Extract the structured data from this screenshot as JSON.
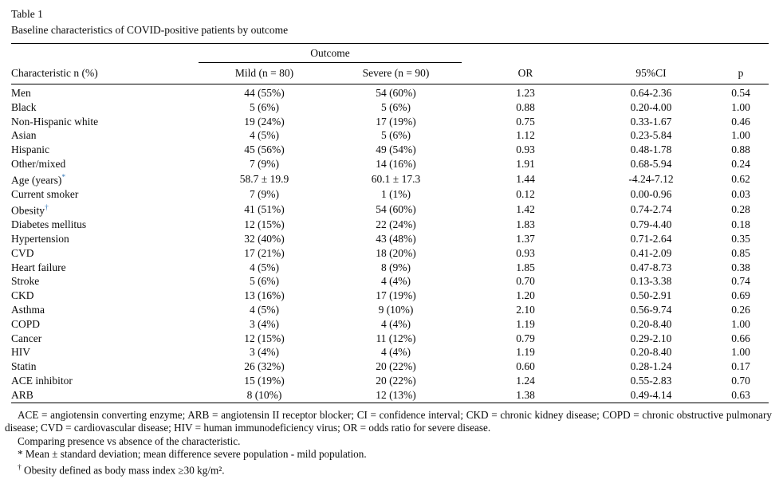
{
  "colors": {
    "footnote_marker_blue": "#3579b8",
    "text": "#0b0b0b",
    "background": "#ffffff"
  },
  "table": {
    "label": "Table 1",
    "caption": "Baseline characteristics of COVID-positive patients by outcome",
    "spanner": "Outcome",
    "columns": [
      "Characteristic n (%)",
      "Mild (n = 80)",
      "Severe (n = 90)",
      "OR",
      "95%CI",
      "p"
    ],
    "rows": [
      {
        "characteristic": "Men",
        "marker": "",
        "mild": "44 (55%)",
        "severe": "54 (60%)",
        "or": "1.23",
        "ci": "0.64-2.36",
        "p": "0.54"
      },
      {
        "characteristic": "Black",
        "marker": "",
        "mild": "5 (6%)",
        "severe": "5 (6%)",
        "or": "0.88",
        "ci": "0.20-4.00",
        "p": "1.00"
      },
      {
        "characteristic": "Non-Hispanic white",
        "marker": "",
        "mild": "19 (24%)",
        "severe": "17 (19%)",
        "or": "0.75",
        "ci": "0.33-1.67",
        "p": "0.46"
      },
      {
        "characteristic": "Asian",
        "marker": "",
        "mild": "4 (5%)",
        "severe": "5 (6%)",
        "or": "1.12",
        "ci": "0.23-5.84",
        "p": "1.00"
      },
      {
        "characteristic": "Hispanic",
        "marker": "",
        "mild": "45 (56%)",
        "severe": "49 (54%)",
        "or": "0.93",
        "ci": "0.48-1.78",
        "p": "0.88"
      },
      {
        "characteristic": "Other/mixed",
        "marker": "",
        "mild": "7 (9%)",
        "severe": "14 (16%)",
        "or": "1.91",
        "ci": "0.68-5.94",
        "p": "0.24"
      },
      {
        "characteristic": "Age (years)",
        "marker": "*",
        "mild": "58.7 ± 19.9",
        "severe": "60.1 ± 17.3",
        "or": "1.44",
        "ci": "-4.24-7.12",
        "p": "0.62"
      },
      {
        "characteristic": "Current smoker",
        "marker": "",
        "mild": "7 (9%)",
        "severe": "1 (1%)",
        "or": "0.12",
        "ci": "0.00-0.96",
        "p": "0.03"
      },
      {
        "characteristic": "Obesity",
        "marker": "†",
        "mild": "41 (51%)",
        "severe": "54 (60%)",
        "or": "1.42",
        "ci": "0.74-2.74",
        "p": "0.28"
      },
      {
        "characteristic": "Diabetes mellitus",
        "marker": "",
        "mild": "12 (15%)",
        "severe": "22 (24%)",
        "or": "1.83",
        "ci": "0.79-4.40",
        "p": "0.18"
      },
      {
        "characteristic": "Hypertension",
        "marker": "",
        "mild": "32 (40%)",
        "severe": "43 (48%)",
        "or": "1.37",
        "ci": "0.71-2.64",
        "p": "0.35"
      },
      {
        "characteristic": "CVD",
        "marker": "",
        "mild": "17 (21%)",
        "severe": "18 (20%)",
        "or": "0.93",
        "ci": "0.41-2.09",
        "p": "0.85"
      },
      {
        "characteristic": "Heart failure",
        "marker": "",
        "mild": "4 (5%)",
        "severe": "8 (9%)",
        "or": "1.85",
        "ci": "0.47-8.73",
        "p": "0.38"
      },
      {
        "characteristic": "Stroke",
        "marker": "",
        "mild": "5 (6%)",
        "severe": "4 (4%)",
        "or": "0.70",
        "ci": "0.13-3.38",
        "p": "0.74"
      },
      {
        "characteristic": "CKD",
        "marker": "",
        "mild": "13 (16%)",
        "severe": "17 (19%)",
        "or": "1.20",
        "ci": "0.50-2.91",
        "p": "0.69"
      },
      {
        "characteristic": "Asthma",
        "marker": "",
        "mild": "4 (5%)",
        "severe": "9 (10%)",
        "or": "2.10",
        "ci": "0.56-9.74",
        "p": "0.26"
      },
      {
        "characteristic": "COPD",
        "marker": "",
        "mild": "3 (4%)",
        "severe": "4 (4%)",
        "or": "1.19",
        "ci": "0.20-8.40",
        "p": "1.00"
      },
      {
        "characteristic": "Cancer",
        "marker": "",
        "mild": "12 (15%)",
        "severe": "11 (12%)",
        "or": "0.79",
        "ci": "0.29-2.10",
        "p": "0.66"
      },
      {
        "characteristic": "HIV",
        "marker": "",
        "mild": "3 (4%)",
        "severe": "4 (4%)",
        "or": "1.19",
        "ci": "0.20-8.40",
        "p": "1.00"
      },
      {
        "characteristic": "Statin",
        "marker": "",
        "mild": "26 (32%)",
        "severe": "20 (22%)",
        "or": "0.60",
        "ci": "0.28-1.24",
        "p": "0.17"
      },
      {
        "characteristic": "ACE inhibitor",
        "marker": "",
        "mild": "15 (19%)",
        "severe": "20 (22%)",
        "or": "1.24",
        "ci": "0.55-2.83",
        "p": "0.70"
      },
      {
        "characteristic": "ARB",
        "marker": "",
        "mild": "8 (10%)",
        "severe": "12 (13%)",
        "or": "1.38",
        "ci": "0.49-4.14",
        "p": "0.63"
      }
    ]
  },
  "footnotes": {
    "abbreviations": "ACE = angiotensin converting enzyme; ARB = angiotensin II receptor blocker; CI = confidence interval; CKD = chronic kidney disease; COPD = chronic obstructive pulmonary disease; CVD = cardiovascular disease; HIV = human immunodeficiency virus; OR = odds ratio for severe disease.",
    "comparison": "Comparing presence vs absence of the characteristic.",
    "asterisk": {
      "marker": "*",
      "text": "Mean ± standard deviation; mean difference severe population - mild population."
    },
    "dagger": {
      "marker": "†",
      "text": "Obesity defined as body mass index ≥30 kg/m²."
    }
  }
}
